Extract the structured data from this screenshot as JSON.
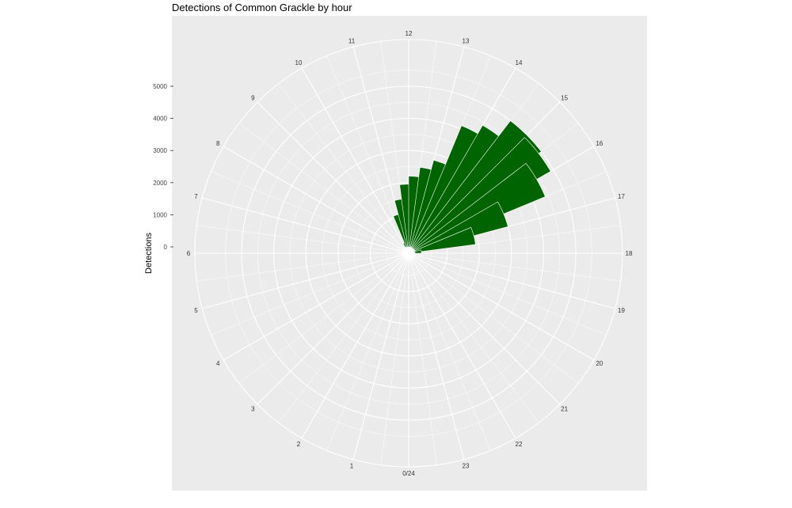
{
  "chart_data": {
    "type": "bar",
    "coord": "polar",
    "title": "Detections of Common Grackle by hour",
    "xlabel": "",
    "ylabel": "Detections",
    "categories": [
      "0/24",
      "1",
      "2",
      "3",
      "4",
      "5",
      "6",
      "7",
      "8",
      "9",
      "10",
      "11",
      "12",
      "13",
      "14",
      "15",
      "16",
      "17",
      "18",
      "19",
      "20",
      "21",
      "22",
      "23"
    ],
    "series": [
      {
        "values": [
          0,
          0,
          0,
          0,
          0,
          0,
          0,
          0,
          150,
          1050,
          1500,
          1950,
          2200,
          2500,
          2800,
          4100,
          4400,
          5000,
          4900,
          4400,
          3000,
          1900,
          200,
          0
        ],
        "bin_starts": [
          0,
          0.5,
          1,
          1.5,
          2,
          2.5,
          3,
          3.5,
          4,
          4.5,
          5,
          5.5,
          6,
          6.5,
          7,
          7.5,
          8,
          8.5,
          9,
          9.5,
          10,
          10.5,
          11,
          11.5
        ],
        "note_skip": true
      }
    ],
    "ylim": [
      0,
      5000
    ],
    "yticks": [
      0,
      1000,
      2000,
      3000,
      4000,
      5000
    ],
    "grid": true,
    "legend": "none",
    "bar_color": "#006400",
    "panel_color": "#ebebeb"
  }
}
